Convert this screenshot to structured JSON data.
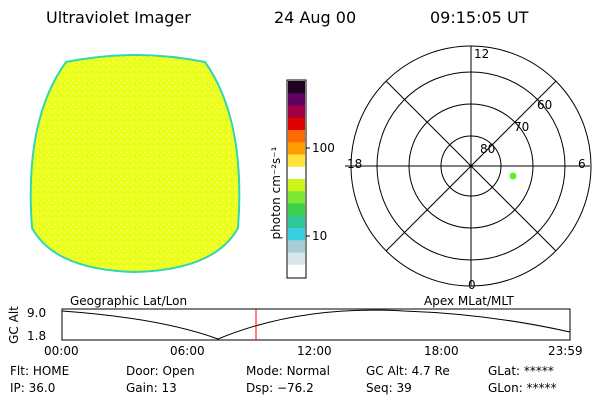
{
  "header": {
    "title": "Ultraviolet Imager",
    "date": "24 Aug 00",
    "time": "09:15:05 UT"
  },
  "image_panel": {
    "fill_color": "#ecff1a",
    "rim_color": "#33d6b0"
  },
  "colorbar": {
    "label": "photon cm⁻²s⁻¹",
    "ticks": [
      "100",
      "10"
    ],
    "scale": "log",
    "colors": [
      "#ffffff",
      "#d8e6ec",
      "#a8ccd8",
      "#38d0e0",
      "#2ec898",
      "#3cd04c",
      "#7ee830",
      "#ccf51a",
      "#ffffff",
      "#ffe33a",
      "#ff9e00",
      "#ff6a00",
      "#e00000",
      "#a00040",
      "#600060",
      "#200020"
    ]
  },
  "polar_plot": {
    "lat_labels": [
      "60",
      "70",
      "80"
    ],
    "mlt_labels": [
      "12",
      "18",
      "6",
      "0"
    ],
    "point_color": "#66ee22"
  },
  "timeline": {
    "left_label": "Geographic Lat/Lon",
    "right_label": "Apex MLat/MLT",
    "y_axis_label": "GC Alt",
    "y_ticks": [
      "9.0",
      "1.8"
    ],
    "x_ticks": [
      "00:00",
      "06:00",
      "12:00",
      "18:00",
      "23:59"
    ],
    "marker_color": "#ff0000"
  },
  "status": {
    "row1": [
      {
        "label": "Flt:",
        "value": "HOME"
      },
      {
        "label": "Door:",
        "value": "Open"
      },
      {
        "label": "Mode:",
        "value": "Normal"
      },
      {
        "label": "GC Alt:",
        "value": "4.7 Re"
      },
      {
        "label": "GLat:",
        "value": "*****"
      }
    ],
    "row2": [
      {
        "label": "IP:",
        "value": "36.0"
      },
      {
        "label": "Gain:",
        "value": "13"
      },
      {
        "label": "Dsp:",
        "value": "−76.2"
      },
      {
        "label": "Seq:",
        "value": "39"
      },
      {
        "label": "GLon:",
        "value": "*****"
      }
    ]
  }
}
